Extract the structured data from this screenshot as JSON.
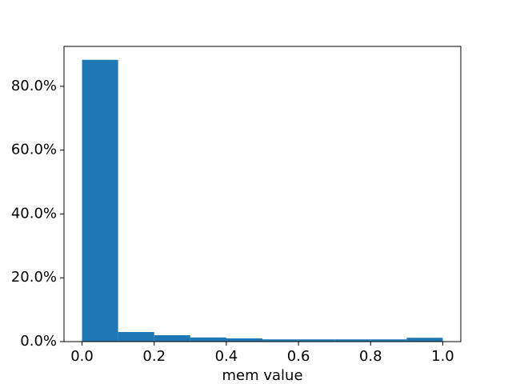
{
  "chart_data": {
    "type": "histogram",
    "x_label": "mem value",
    "bins": [
      0,
      0.1,
      0.2,
      0.3,
      0.4,
      0.5,
      0.6,
      0.7,
      0.8,
      0.9,
      1.0
    ],
    "values": [
      88.3,
      3.0,
      2.0,
      1.3,
      1.0,
      0.7,
      0.7,
      0.7,
      0.7,
      1.2
    ],
    "color": "#1f77b4",
    "xlim": [
      -0.05,
      1.05
    ],
    "xticks": [
      {
        "value": 0,
        "label": "0.0"
      },
      0.2,
      0.4,
      0.6,
      0.8,
      {
        "value": 1,
        "label": "1.0"
      }
    ],
    "ylim": [
      0,
      92.5
    ],
    "yticks": [
      {
        "value": 0,
        "label": "0.0%"
      },
      {
        "value": 20,
        "label": "20.0%"
      },
      {
        "value": 40,
        "label": "40.0%"
      },
      {
        "value": 60,
        "label": "60.0%"
      },
      {
        "value": 80,
        "label": "80.0%"
      }
    ],
    "grid": false
  }
}
